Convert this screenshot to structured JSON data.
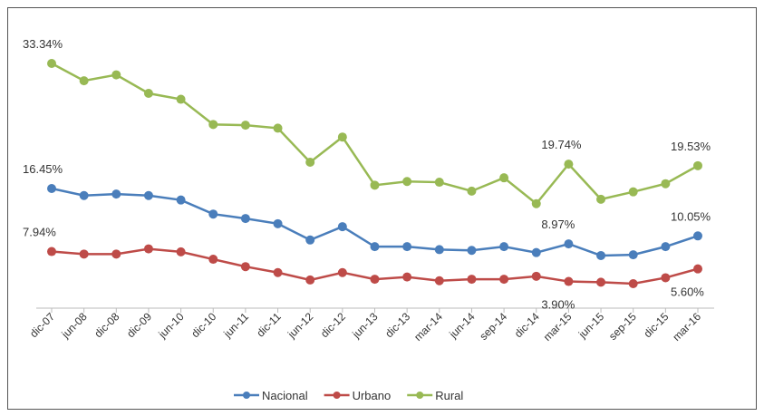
{
  "chart_data": {
    "type": "line",
    "categories": [
      "dic-07",
      "jun-08",
      "dic-08",
      "dic-09",
      "jun-10",
      "dic-10",
      "jun-11",
      "dic-11",
      "jun-12",
      "dic-12",
      "jun-13",
      "dic-13",
      "mar-14",
      "jun-14",
      "sep-14",
      "dic-14",
      "mar-15",
      "jun-15",
      "sep-15",
      "dic-15",
      "mar-16"
    ],
    "series": [
      {
        "name": "Nacional",
        "color": "#4a7ebb",
        "values": [
          16.45,
          15.5,
          15.7,
          15.5,
          14.9,
          13.0,
          12.4,
          11.7,
          9.5,
          11.3,
          8.6,
          8.6,
          8.2,
          8.1,
          8.6,
          7.8,
          8.97,
          7.4,
          7.5,
          8.6,
          10.05
        ],
        "value_labels": [
          "16.45%",
          null,
          null,
          null,
          null,
          null,
          null,
          null,
          null,
          null,
          null,
          null,
          null,
          null,
          null,
          null,
          "8.97%",
          null,
          null,
          null,
          "10.05%"
        ],
        "label_colors": [
          "#333333",
          null,
          null,
          null,
          null,
          null,
          null,
          null,
          null,
          null,
          null,
          null,
          null,
          null,
          null,
          null,
          "#e8474c",
          null,
          null,
          null,
          "#e8474c"
        ]
      },
      {
        "name": "Urbano",
        "color": "#be4b48",
        "values": [
          7.94,
          7.6,
          7.6,
          8.3,
          7.9,
          6.9,
          5.9,
          5.1,
          4.1,
          5.1,
          4.2,
          4.5,
          4.0,
          4.2,
          4.2,
          4.6,
          3.9,
          3.8,
          3.6,
          4.4,
          5.6
        ],
        "value_labels": [
          "7.94%",
          null,
          null,
          null,
          null,
          null,
          null,
          null,
          null,
          null,
          null,
          null,
          null,
          null,
          null,
          null,
          "3.90%",
          null,
          null,
          null,
          "5.60%"
        ],
        "label_colors": [
          "#333333",
          null,
          null,
          null,
          null,
          null,
          null,
          null,
          null,
          null,
          null,
          null,
          null,
          null,
          null,
          null,
          "#e8474c",
          null,
          null,
          null,
          "#e8474c"
        ]
      },
      {
        "name": "Rural",
        "color": "#98b954",
        "values": [
          33.34,
          31.0,
          31.8,
          29.3,
          28.5,
          25.1,
          25.0,
          24.6,
          20.0,
          23.4,
          16.9,
          17.4,
          17.3,
          16.1,
          17.9,
          14.4,
          19.74,
          15.0,
          16.0,
          17.1,
          19.53
        ],
        "value_labels": [
          "33.34%",
          null,
          null,
          null,
          null,
          null,
          null,
          null,
          null,
          null,
          null,
          null,
          null,
          null,
          null,
          null,
          "19.74%",
          null,
          null,
          null,
          "19.53%"
        ],
        "label_colors": [
          "#333333",
          null,
          null,
          null,
          null,
          null,
          null,
          null,
          null,
          null,
          null,
          null,
          null,
          null,
          null,
          null,
          "#e8474c",
          null,
          null,
          null,
          "#e8474c"
        ]
      }
    ]
  }
}
